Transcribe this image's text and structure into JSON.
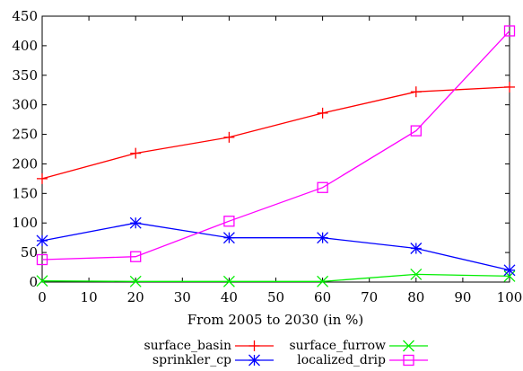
{
  "chart_data": {
    "type": "line",
    "title": "",
    "xlabel": "From 2005 to 2030 (in %)",
    "ylabel": "",
    "xlim": [
      0,
      100
    ],
    "ylim": [
      0,
      450
    ],
    "x_ticks": [
      0,
      10,
      20,
      30,
      40,
      50,
      60,
      70,
      80,
      90,
      100
    ],
    "y_ticks": [
      0,
      50,
      100,
      150,
      200,
      250,
      300,
      350,
      400,
      450
    ],
    "grid": false,
    "legend_position": "bottom",
    "series": [
      {
        "name": "surface_basin",
        "color": "#ff0000",
        "marker": "plus",
        "x": [
          0,
          20,
          40,
          60,
          80,
          100
        ],
        "y": [
          175,
          218,
          245,
          286,
          322,
          330
        ]
      },
      {
        "name": "surface_furrow",
        "color": "#00ee00",
        "marker": "cross",
        "x": [
          0,
          20,
          40,
          60,
          80,
          100
        ],
        "y": [
          2,
          1,
          1,
          1,
          13,
          10
        ]
      },
      {
        "name": "sprinkler_cp",
        "color": "#0000ff",
        "marker": "star",
        "x": [
          0,
          20,
          40,
          60,
          80,
          100
        ],
        "y": [
          70,
          100,
          75,
          75,
          57,
          20
        ]
      },
      {
        "name": "localized_drip",
        "color": "#ff00ff",
        "marker": "square",
        "x": [
          0,
          20,
          40,
          60,
          80,
          100
        ],
        "y": [
          38,
          43,
          103,
          160,
          256,
          425
        ]
      }
    ]
  }
}
